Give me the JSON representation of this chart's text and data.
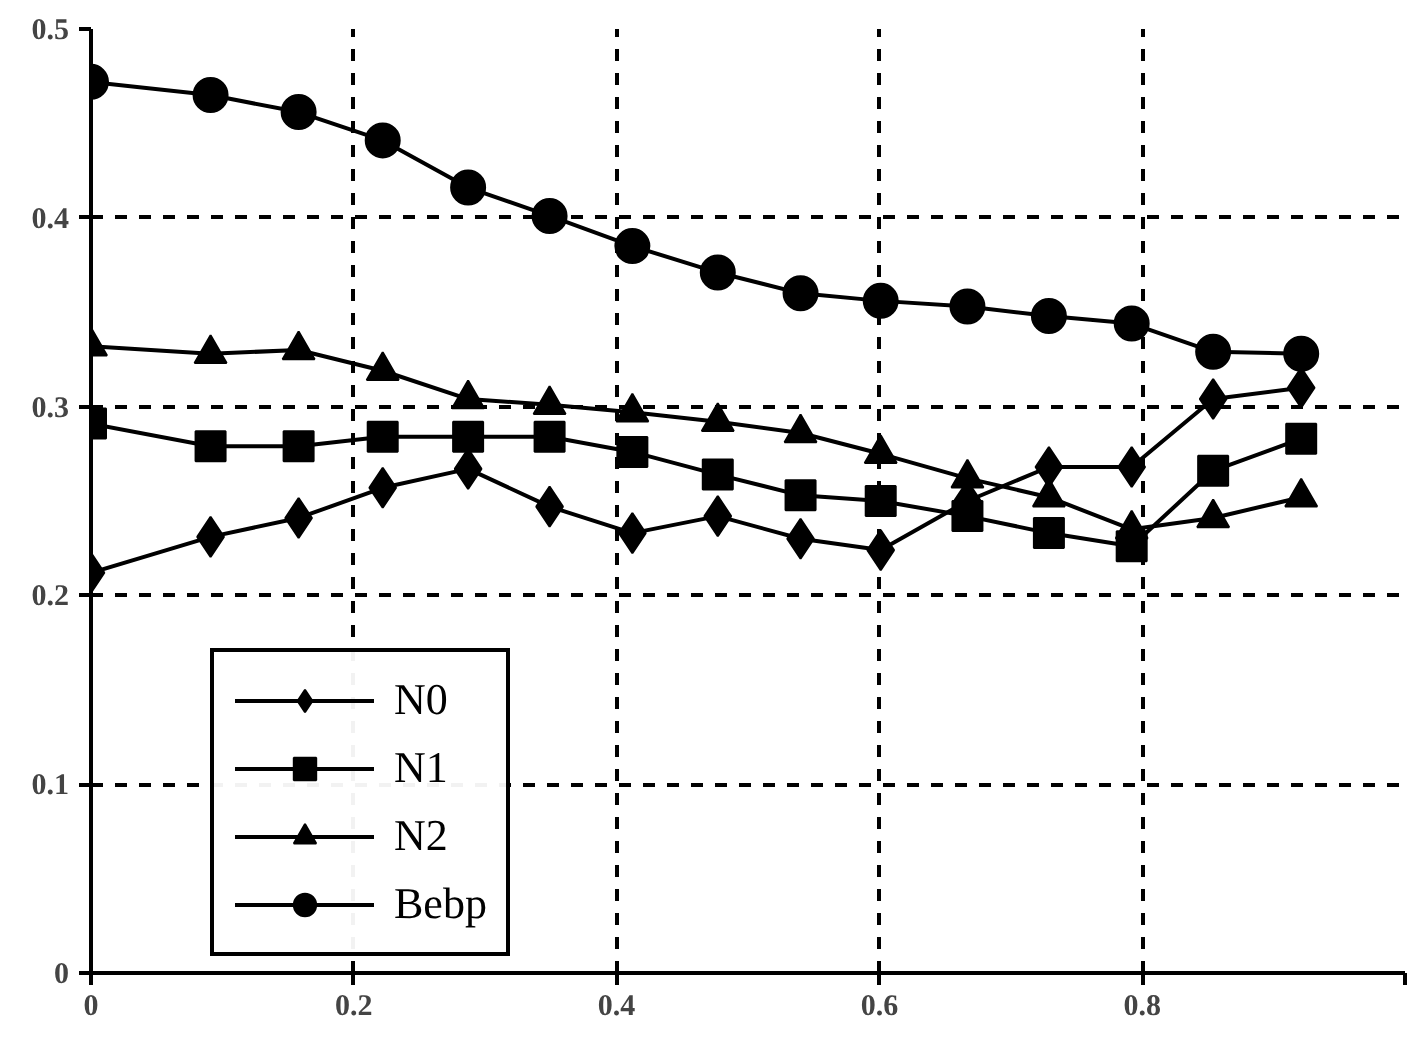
{
  "chart_data": {
    "type": "line",
    "x": [
      0,
      0.091,
      0.158,
      0.222,
      0.287,
      0.349,
      0.412,
      0.477,
      0.54,
      0.601,
      0.667,
      0.729,
      0.792,
      0.854,
      0.921
    ],
    "series": [
      {
        "name": "N0",
        "color": "#000000",
        "marker": "diamond",
        "values": [
          0.212,
          0.231,
          0.241,
          0.257,
          0.267,
          0.247,
          0.233,
          0.242,
          0.23,
          0.224,
          0.25,
          0.268,
          0.268,
          0.304,
          0.31
        ]
      },
      {
        "name": "N1",
        "color": "#000000",
        "marker": "square",
        "values": [
          0.291,
          0.279,
          0.279,
          0.284,
          0.284,
          0.284,
          0.276,
          0.264,
          0.253,
          0.25,
          0.242,
          0.233,
          0.226,
          0.266,
          0.283
        ]
      },
      {
        "name": "N2",
        "color": "#000000",
        "marker": "triangle",
        "values": [
          0.332,
          0.328,
          0.33,
          0.319,
          0.304,
          0.301,
          0.297,
          0.292,
          0.286,
          0.275,
          0.262,
          0.252,
          0.235,
          0.241,
          0.252
        ]
      },
      {
        "name": "Bebp",
        "color": "#000000",
        "marker": "circle",
        "values": [
          0.472,
          0.465,
          0.456,
          0.441,
          0.416,
          0.401,
          0.385,
          0.371,
          0.36,
          0.356,
          0.353,
          0.348,
          0.344,
          0.329,
          0.328
        ]
      }
    ],
    "xlim": [
      0,
      1
    ],
    "xticks": [
      0,
      0.2,
      0.4,
      0.6,
      0.8,
      {
        "value": 1,
        "label": null
      }
    ],
    "ylim": [
      0,
      0.5
    ],
    "yticks": [
      0,
      0.1,
      0.2,
      0.3,
      0.4,
      0.5
    ],
    "grid": true,
    "legend": "bottom left",
    "line_style": "solid"
  }
}
